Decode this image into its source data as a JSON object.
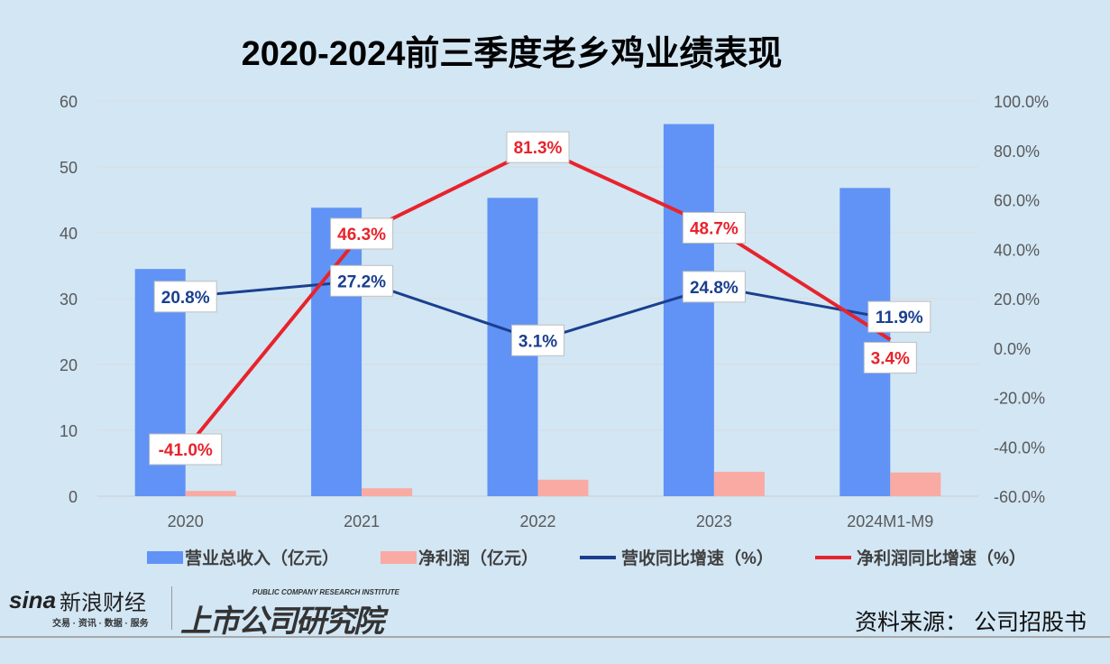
{
  "chart_data": {
    "type": "bar",
    "title": "2020-2024前三季度老乡鸡业绩表现",
    "categories": [
      "2020",
      "2021",
      "2022",
      "2023",
      "2024M1-M9"
    ],
    "series": [
      {
        "name": "营业总收入（亿元）",
        "type": "bar",
        "axis": "left",
        "color": "#6093f5",
        "values": [
          34.5,
          43.8,
          45.3,
          56.5,
          46.8
        ]
      },
      {
        "name": "净利润（亿元）",
        "type": "bar",
        "axis": "left",
        "color": "#f9aaa3",
        "values": [
          0.8,
          1.2,
          2.5,
          3.7,
          3.6
        ]
      },
      {
        "name": "营收同比增速（%）",
        "type": "line",
        "axis": "right",
        "color": "#1a3f8f",
        "values": [
          20.8,
          27.2,
          3.1,
          24.8,
          11.9
        ],
        "labels": [
          "20.8%",
          "27.2%",
          "3.1%",
          "24.8%",
          "11.9%"
        ]
      },
      {
        "name": "净利润同比增速（%）",
        "type": "line",
        "axis": "right",
        "color": "#e8232b",
        "values": [
          -41.0,
          46.3,
          81.3,
          48.7,
          3.4
        ],
        "labels": [
          "-41.0%",
          "46.3%",
          "81.3%",
          "48.7%",
          "3.4%"
        ]
      }
    ],
    "left_axis": {
      "min": 0,
      "max": 60,
      "ticks": [
        "0",
        "10",
        "20",
        "30",
        "40",
        "50",
        "60"
      ]
    },
    "right_axis": {
      "min": -60,
      "max": 100,
      "ticks": [
        "-60.0%",
        "-40.0%",
        "-20.0%",
        "0.0%",
        "20.0%",
        "40.0%",
        "60.0%",
        "80.0%",
        "100.0%"
      ]
    },
    "grid": true,
    "legend": "bottom"
  },
  "footer": {
    "sina_logo": "sina",
    "sina_name": "新浪财经",
    "sina_tagline": "交易 · 资讯 · 数据 · 服务",
    "institute_en": "PUBLIC COMPANY RESEARCH INSTITUTE",
    "institute_cn": "上市公司研究院",
    "source": "资料来源：  公司招股书"
  }
}
